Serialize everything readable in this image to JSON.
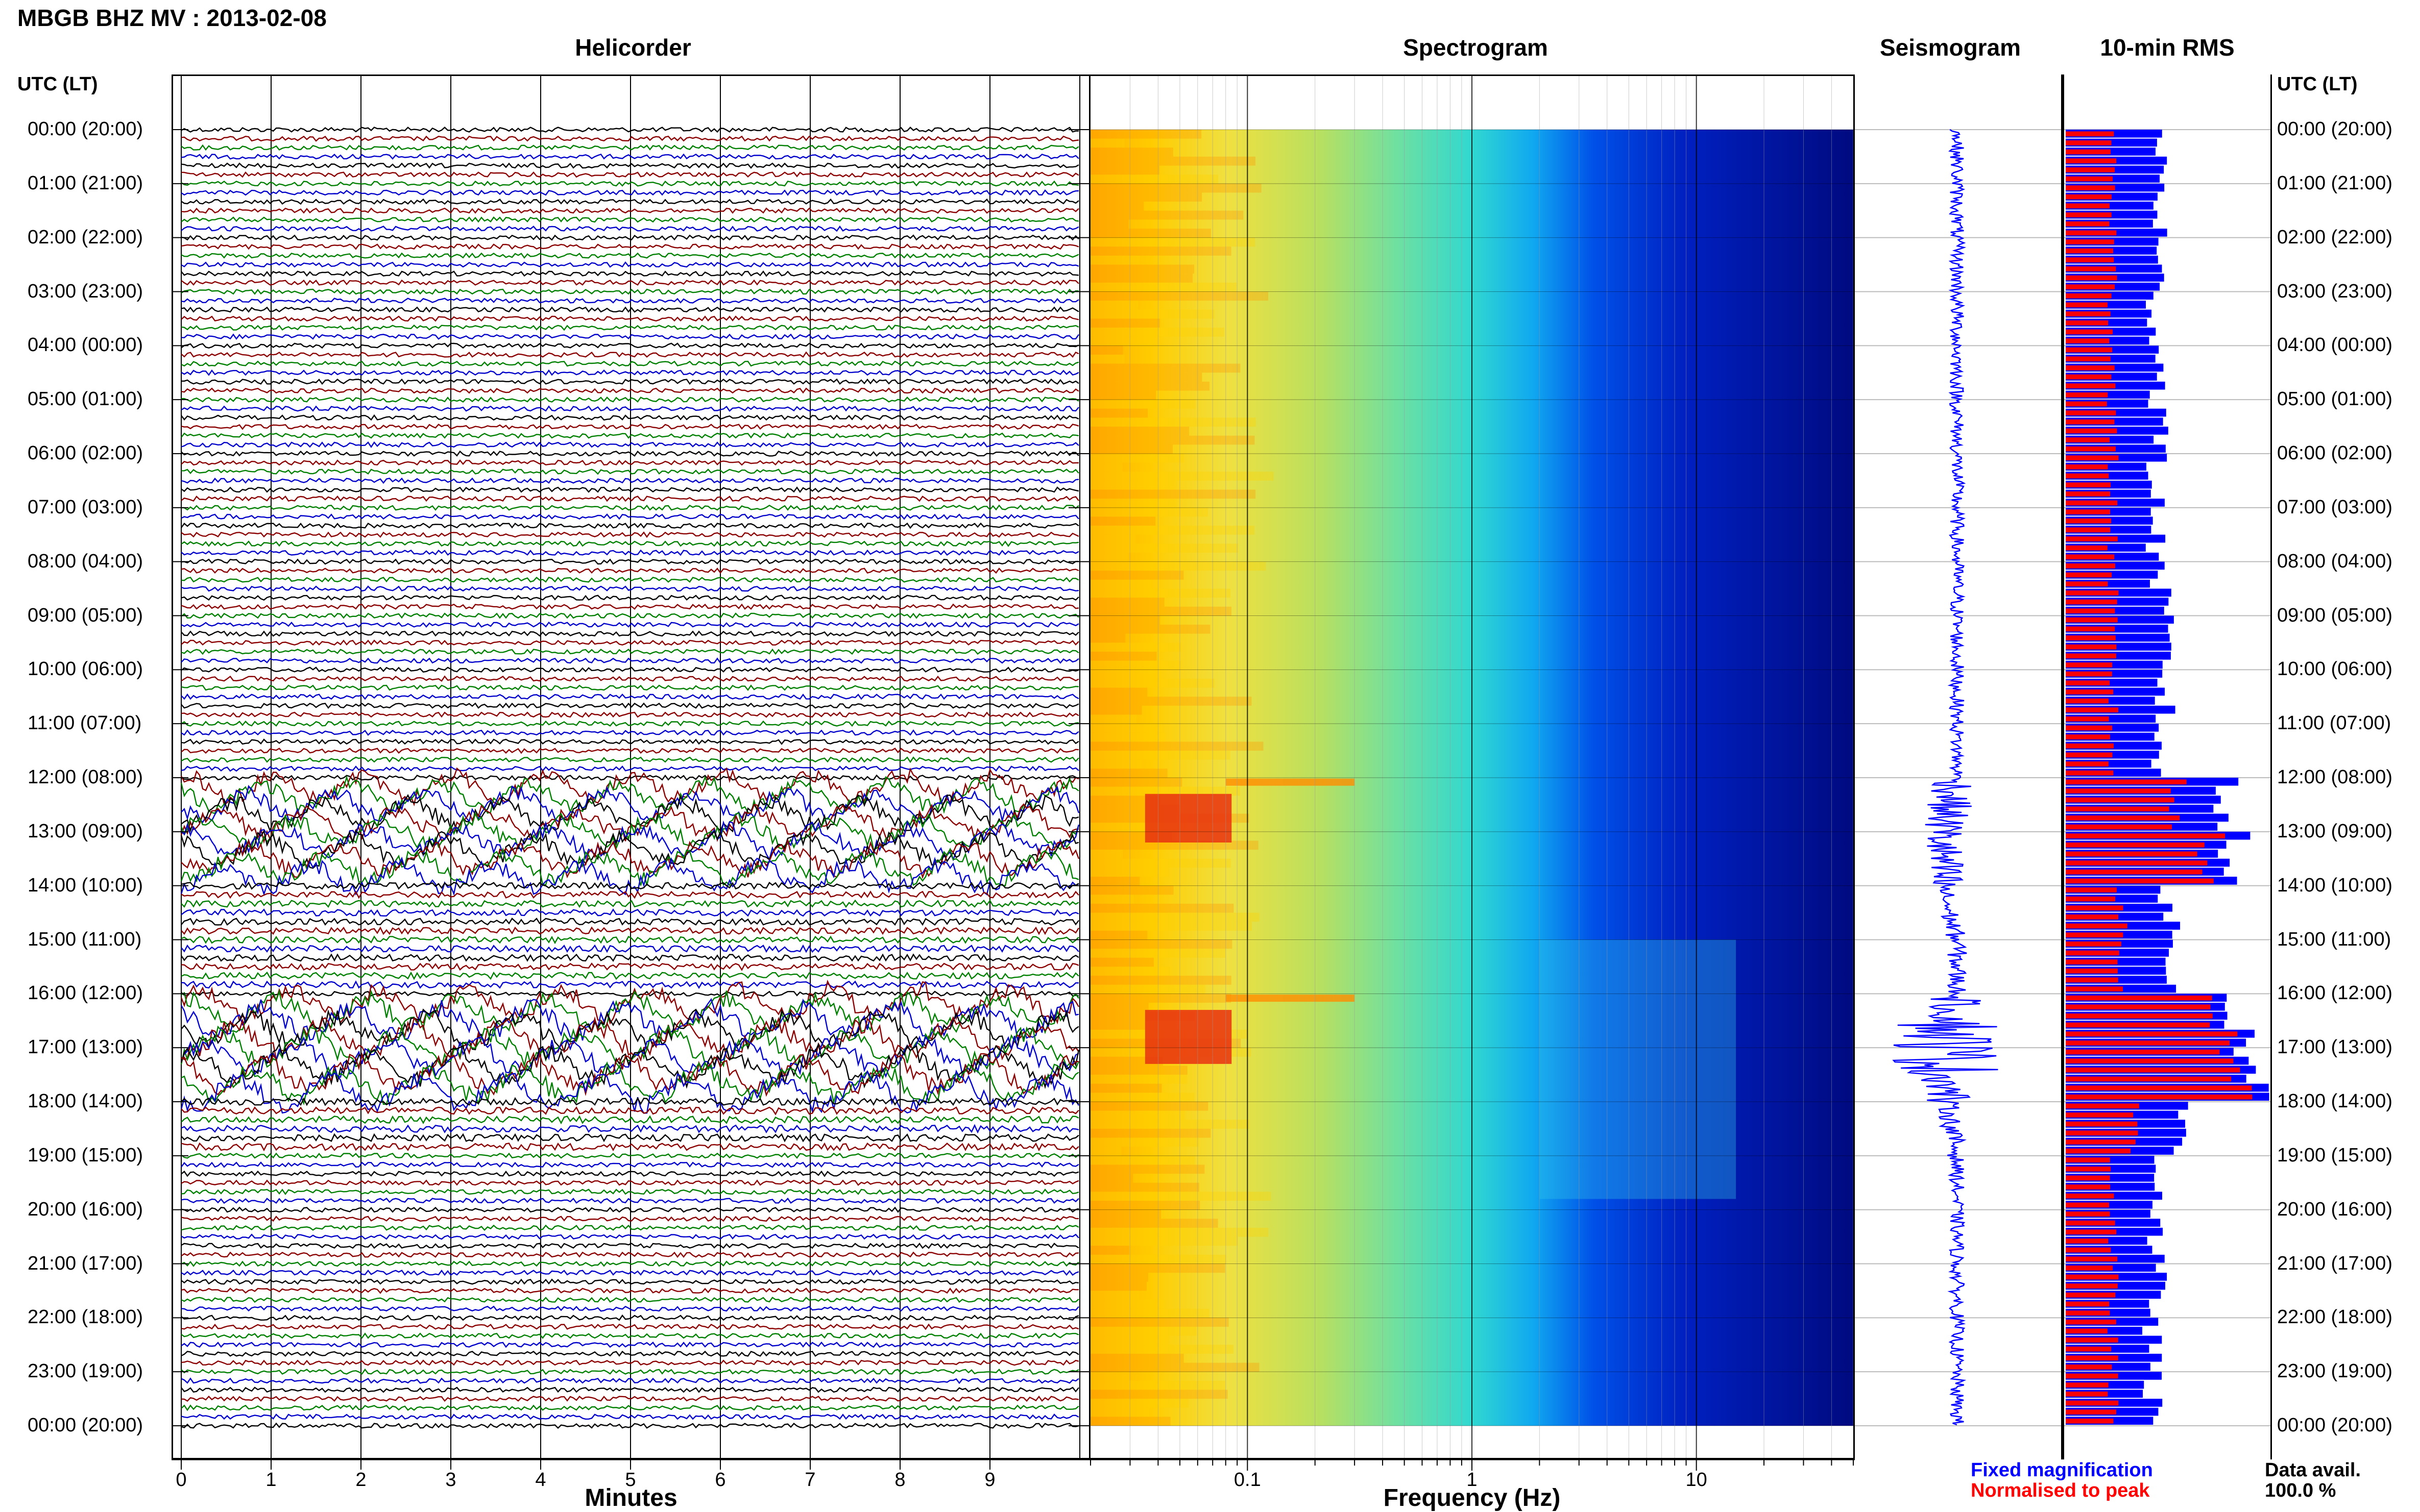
{
  "header": {
    "title": "MBGB BHZ MV : 2013-02-08"
  },
  "panels": {
    "helicorder": "Helicorder",
    "spectrogram": "Spectrogram",
    "seismogram": "Seismogram",
    "rms": "10-min RMS"
  },
  "time_axis": {
    "left_title": "UTC (LT)",
    "right_title": "UTC (LT)",
    "labels": [
      "00:00 (20:00)",
      "01:00 (21:00)",
      "02:00 (22:00)",
      "03:00 (23:00)",
      "04:00 (00:00)",
      "05:00 (01:00)",
      "06:00 (02:00)",
      "07:00 (03:00)",
      "08:00 (04:00)",
      "09:00 (05:00)",
      "10:00 (06:00)",
      "11:00 (07:00)",
      "12:00 (08:00)",
      "13:00 (09:00)",
      "14:00 (10:00)",
      "15:00 (11:00)",
      "16:00 (12:00)",
      "17:00 (13:00)",
      "18:00 (14:00)",
      "19:00 (15:00)",
      "20:00 (16:00)",
      "21:00 (17:00)",
      "22:00 (18:00)",
      "23:00 (19:00)",
      "00:00 (20:00)"
    ]
  },
  "minutes_axis": {
    "title": "Minutes",
    "ticks": [
      "0",
      "1",
      "2",
      "3",
      "4",
      "5",
      "6",
      "7",
      "8",
      "9"
    ]
  },
  "frequency_axis": {
    "title": "Frequency (Hz)",
    "ticks": [
      "0.1",
      "1",
      "10"
    ]
  },
  "legend": {
    "fixed": "Fixed magnification",
    "normalised": "Normalised to peak",
    "fixed_color": "#0000ff",
    "normalised_color": "#ff0000"
  },
  "availability": {
    "label": "Data avail.",
    "value": "100.0 %"
  },
  "colors": {
    "trace_cycle": [
      "#000000",
      "#8b0000",
      "#008000",
      "#0000cd"
    ],
    "seismogram": "#0000ff",
    "rms_fixed": "#0000ff",
    "rms_normalised": "#ff0000"
  },
  "chart_data": {
    "type": "bar",
    "title": "10-min RMS",
    "xlabel": "",
    "ylabel": "UTC (LT)",
    "x_range_hours": [
      0,
      24
    ],
    "hourly_rms": {
      "hours": [
        0,
        1,
        2,
        3,
        4,
        5,
        6,
        7,
        8,
        9,
        10,
        11,
        12,
        13,
        14,
        15,
        16,
        17,
        18,
        19,
        20,
        21,
        22,
        23
      ],
      "series": [
        {
          "name": "Fixed magnification",
          "values": [
            0.24,
            0.24,
            0.23,
            0.23,
            0.24,
            0.24,
            0.23,
            0.23,
            0.24,
            0.25,
            0.25,
            0.24,
            0.4,
            0.44,
            0.26,
            0.27,
            0.44,
            0.48,
            0.3,
            0.24,
            0.23,
            0.23,
            0.22,
            0.22
          ]
        },
        {
          "name": "Normalised to peak",
          "values": [
            0.12,
            0.12,
            0.12,
            0.12,
            0.12,
            0.12,
            0.12,
            0.12,
            0.12,
            0.12,
            0.12,
            0.12,
            0.28,
            0.38,
            0.14,
            0.14,
            0.4,
            0.44,
            0.18,
            0.12,
            0.12,
            0.12,
            0.12,
            0.12
          ]
        }
      ]
    },
    "spectrogram": {
      "frequency_range_hz": [
        0.02,
        50
      ],
      "xscale": "log",
      "energetic_periods_utc": [
        "12:00-14:00",
        "16:00-18:00"
      ],
      "dominant_band_hz": [
        0.04,
        0.08
      ]
    }
  }
}
